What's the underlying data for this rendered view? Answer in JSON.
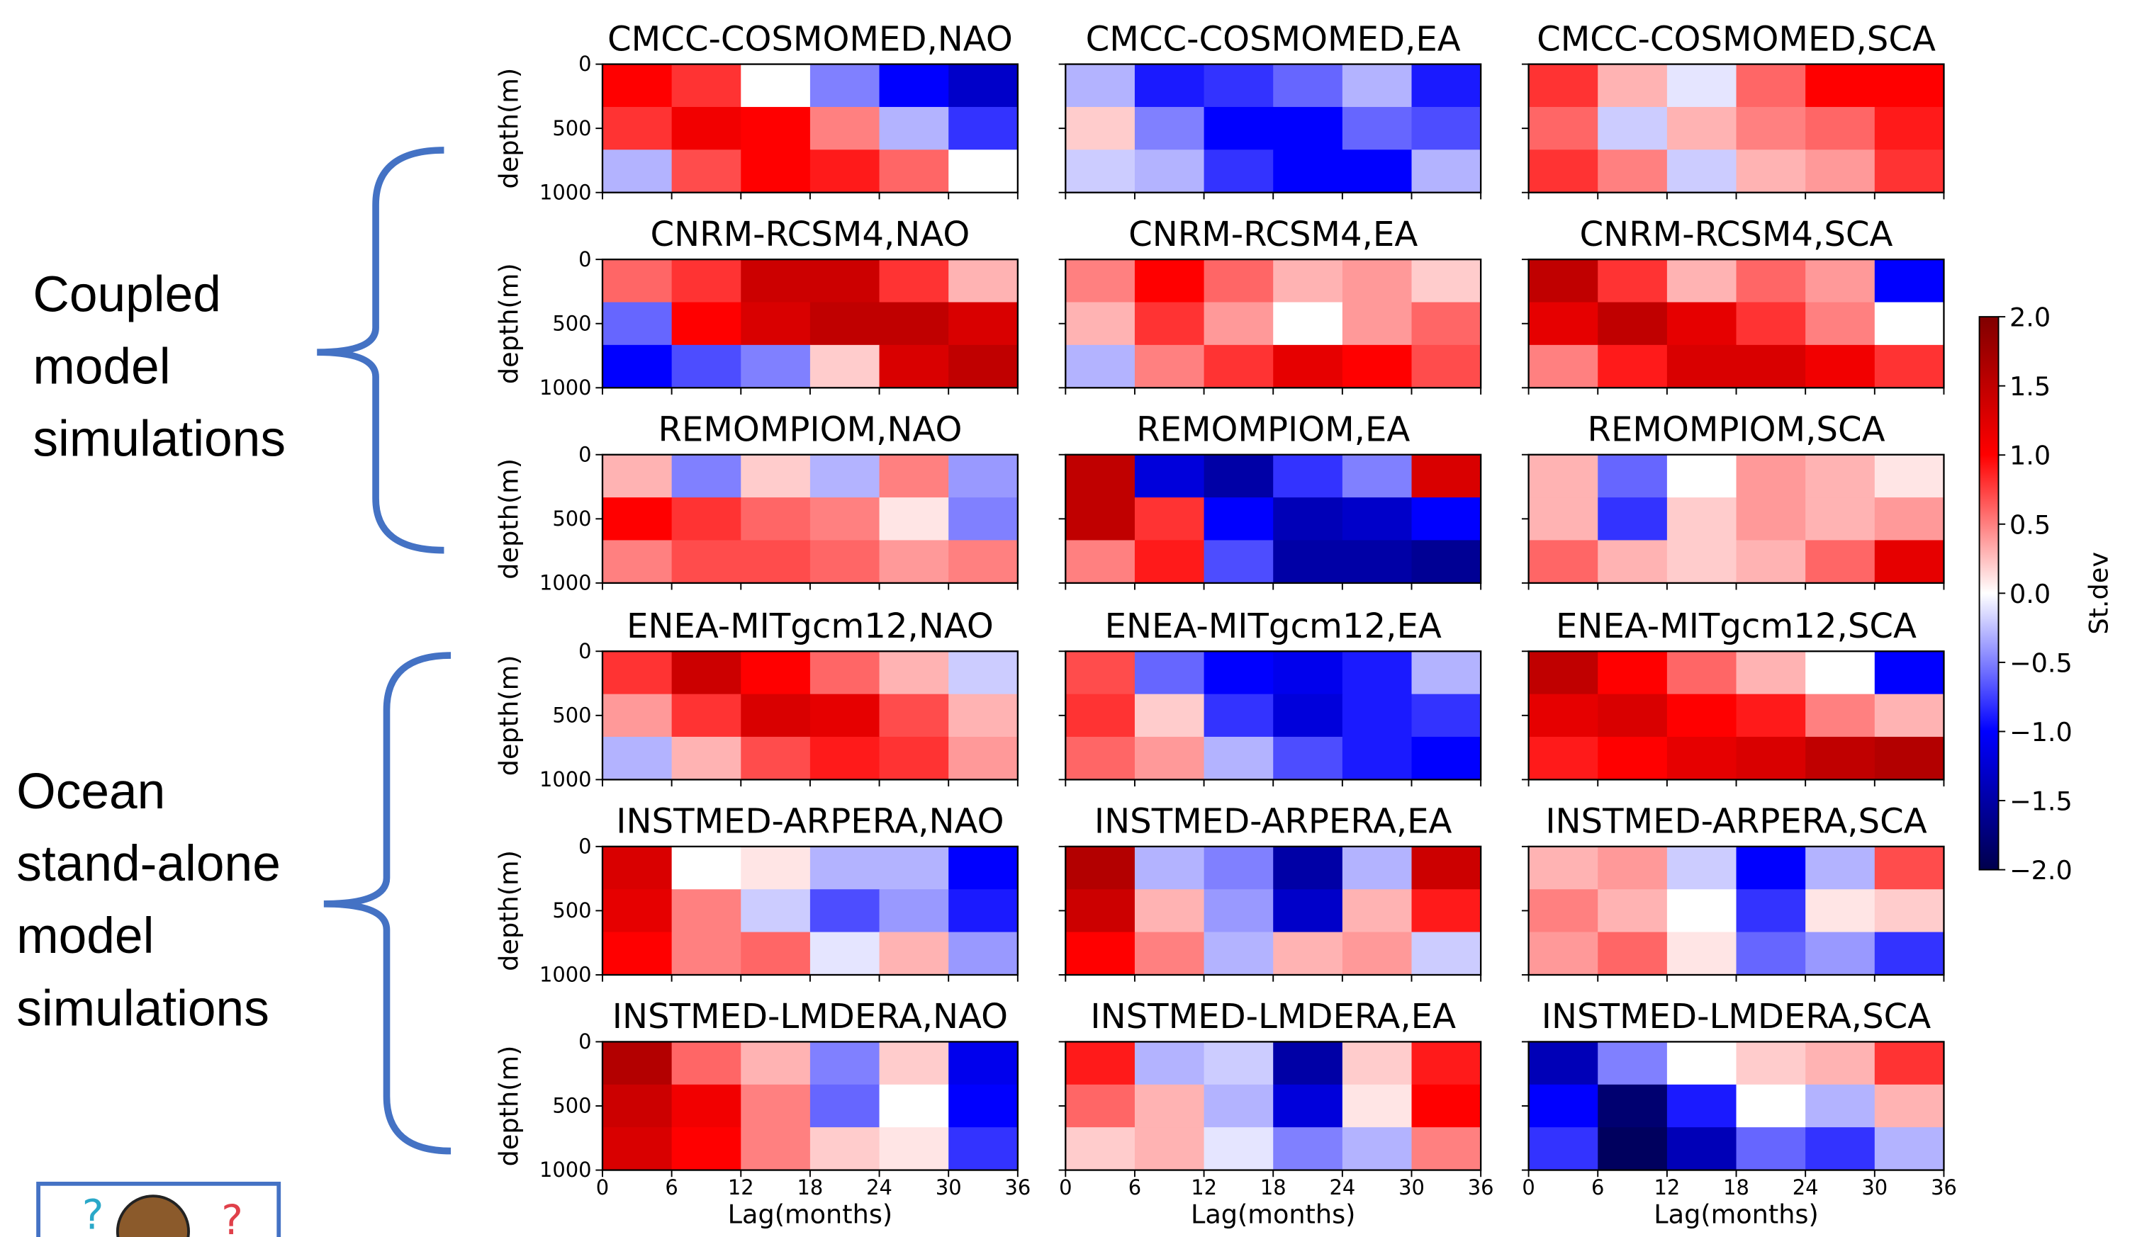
{
  "chart_data": [
    {
      "type": "heatmap",
      "title": "CMCC-COSMOMED,NAO",
      "x": [
        3,
        9,
        15,
        21,
        27,
        33
      ],
      "y": [
        167,
        500,
        833
      ],
      "values": [
        [
          1.0,
          0.8,
          0.0,
          -0.5,
          -1.0,
          -1.3
        ],
        [
          0.8,
          1.1,
          1.0,
          0.5,
          -0.3,
          -0.8
        ],
        [
          -0.3,
          0.7,
          1.0,
          0.9,
          0.6,
          0.0
        ]
      ],
      "xlim": [
        0,
        36
      ],
      "ylim": [
        1000,
        0
      ],
      "xticks": [
        0,
        6,
        12,
        18,
        24,
        30,
        36
      ],
      "yticks": [
        0,
        500,
        1000
      ],
      "ylabel": "depth(m)"
    },
    {
      "type": "heatmap",
      "title": "CMCC-COSMOMED,EA",
      "x": [
        3,
        9,
        15,
        21,
        27,
        33
      ],
      "y": [
        167,
        500,
        833
      ],
      "values": [
        [
          -0.3,
          -0.9,
          -0.8,
          -0.6,
          -0.3,
          -0.9
        ],
        [
          0.2,
          -0.5,
          -1.0,
          -1.0,
          -0.6,
          -0.7
        ],
        [
          -0.2,
          -0.3,
          -0.8,
          -1.0,
          -1.0,
          -0.3
        ]
      ],
      "xlim": [
        0,
        36
      ],
      "ylim": [
        1000,
        0
      ],
      "xticks": [
        0,
        6,
        12,
        18,
        24,
        30,
        36
      ],
      "yticks": [
        0,
        500,
        1000
      ]
    },
    {
      "type": "heatmap",
      "title": "CMCC-COSMOMED,SCA",
      "x": [
        3,
        9,
        15,
        21,
        27,
        33
      ],
      "y": [
        167,
        500,
        833
      ],
      "values": [
        [
          0.8,
          0.3,
          -0.1,
          0.6,
          1.0,
          1.0
        ],
        [
          0.6,
          -0.2,
          0.3,
          0.5,
          0.6,
          0.9
        ],
        [
          0.8,
          0.5,
          -0.2,
          0.3,
          0.4,
          0.8
        ]
      ],
      "xlim": [
        0,
        36
      ],
      "ylim": [
        1000,
        0
      ],
      "xticks": [
        0,
        6,
        12,
        18,
        24,
        30,
        36
      ],
      "yticks": [
        0,
        500,
        1000
      ]
    },
    {
      "type": "heatmap",
      "title": "CNRM-RCSM4,NAO",
      "x": [
        3,
        9,
        15,
        21,
        27,
        33
      ],
      "y": [
        167,
        500,
        833
      ],
      "values": [
        [
          0.6,
          0.8,
          1.4,
          1.4,
          0.8,
          0.3
        ],
        [
          -0.6,
          1.0,
          1.3,
          1.5,
          1.5,
          1.3
        ],
        [
          -1.0,
          -0.7,
          -0.5,
          0.2,
          1.3,
          1.5
        ]
      ],
      "xlim": [
        0,
        36
      ],
      "ylim": [
        1000,
        0
      ],
      "xticks": [
        0,
        6,
        12,
        18,
        24,
        30,
        36
      ],
      "yticks": [
        0,
        500,
        1000
      ],
      "ylabel": "depth(m)"
    },
    {
      "type": "heatmap",
      "title": "CNRM-RCSM4,EA",
      "x": [
        3,
        9,
        15,
        21,
        27,
        33
      ],
      "y": [
        167,
        500,
        833
      ],
      "values": [
        [
          0.5,
          1.0,
          0.6,
          0.3,
          0.4,
          0.2
        ],
        [
          0.3,
          0.8,
          0.4,
          0.0,
          0.4,
          0.6
        ],
        [
          -0.3,
          0.5,
          0.8,
          1.2,
          1.0,
          0.7
        ]
      ],
      "xlim": [
        0,
        36
      ],
      "ylim": [
        1000,
        0
      ],
      "xticks": [
        0,
        6,
        12,
        18,
        24,
        30,
        36
      ],
      "yticks": [
        0,
        500,
        1000
      ]
    },
    {
      "type": "heatmap",
      "title": "CNRM-RCSM4,SCA",
      "x": [
        3,
        9,
        15,
        21,
        27,
        33
      ],
      "y": [
        167,
        500,
        833
      ],
      "values": [
        [
          1.5,
          0.8,
          0.3,
          0.6,
          0.4,
          -1.0
        ],
        [
          1.2,
          1.5,
          1.2,
          0.8,
          0.5,
          0.0
        ],
        [
          0.5,
          0.9,
          1.3,
          1.3,
          1.1,
          0.8
        ]
      ],
      "xlim": [
        0,
        36
      ],
      "ylim": [
        1000,
        0
      ],
      "xticks": [
        0,
        6,
        12,
        18,
        24,
        30,
        36
      ],
      "yticks": [
        0,
        500,
        1000
      ]
    },
    {
      "type": "heatmap",
      "title": "REMOMPIOM,NAO",
      "x": [
        3,
        9,
        15,
        21,
        27,
        33
      ],
      "y": [
        167,
        500,
        833
      ],
      "values": [
        [
          0.3,
          -0.5,
          0.2,
          -0.3,
          0.5,
          -0.4
        ],
        [
          1.0,
          0.8,
          0.6,
          0.5,
          0.1,
          -0.5
        ],
        [
          0.5,
          0.7,
          0.7,
          0.6,
          0.4,
          0.5
        ]
      ],
      "xlim": [
        0,
        36
      ],
      "ylim": [
        1000,
        0
      ],
      "xticks": [
        0,
        6,
        12,
        18,
        24,
        30,
        36
      ],
      "yticks": [
        0,
        500,
        1000
      ],
      "ylabel": "depth(m)"
    },
    {
      "type": "heatmap",
      "title": "REMOMPIOM,EA",
      "x": [
        3,
        9,
        15,
        21,
        27,
        33
      ],
      "y": [
        167,
        500,
        833
      ],
      "values": [
        [
          1.5,
          -1.2,
          -1.5,
          -0.8,
          -0.5,
          1.3
        ],
        [
          1.5,
          0.8,
          -1.0,
          -1.4,
          -1.3,
          -1.0
        ],
        [
          0.5,
          0.9,
          -0.7,
          -1.5,
          -1.5,
          -1.6
        ]
      ],
      "xlim": [
        0,
        36
      ],
      "ylim": [
        1000,
        0
      ],
      "xticks": [
        0,
        6,
        12,
        18,
        24,
        30,
        36
      ],
      "yticks": [
        0,
        500,
        1000
      ]
    },
    {
      "type": "heatmap",
      "title": "REMOMPIOM,SCA",
      "x": [
        3,
        9,
        15,
        21,
        27,
        33
      ],
      "y": [
        167,
        500,
        833
      ],
      "values": [
        [
          0.3,
          -0.6,
          0.0,
          0.4,
          0.3,
          0.1
        ],
        [
          0.3,
          -0.8,
          0.2,
          0.4,
          0.3,
          0.4
        ],
        [
          0.6,
          0.3,
          0.2,
          0.3,
          0.6,
          1.2
        ]
      ],
      "xlim": [
        0,
        36
      ],
      "ylim": [
        1000,
        0
      ],
      "xticks": [
        0,
        6,
        12,
        18,
        24,
        30,
        36
      ],
      "yticks": [
        0,
        500,
        1000
      ]
    },
    {
      "type": "heatmap",
      "title": "ENEA-MITgcm12,NAO",
      "x": [
        3,
        9,
        15,
        21,
        27,
        33
      ],
      "y": [
        167,
        500,
        833
      ],
      "values": [
        [
          0.8,
          1.4,
          1.0,
          0.6,
          0.3,
          -0.2
        ],
        [
          0.4,
          0.8,
          1.3,
          1.2,
          0.7,
          0.3
        ],
        [
          -0.3,
          0.3,
          0.7,
          0.9,
          0.8,
          0.4
        ]
      ],
      "xlim": [
        0,
        36
      ],
      "ylim": [
        1000,
        0
      ],
      "xticks": [
        0,
        6,
        12,
        18,
        24,
        30,
        36
      ],
      "yticks": [
        0,
        500,
        1000
      ],
      "ylabel": "depth(m)"
    },
    {
      "type": "heatmap",
      "title": "ENEA-MITgcm12,EA",
      "x": [
        3,
        9,
        15,
        21,
        27,
        33
      ],
      "y": [
        167,
        500,
        833
      ],
      "values": [
        [
          0.7,
          -0.6,
          -1.0,
          -1.1,
          -0.9,
          -0.3
        ],
        [
          0.8,
          0.2,
          -0.8,
          -1.2,
          -0.9,
          -0.8
        ],
        [
          0.6,
          0.4,
          -0.3,
          -0.7,
          -0.9,
          -1.0
        ]
      ],
      "xlim": [
        0,
        36
      ],
      "ylim": [
        1000,
        0
      ],
      "xticks": [
        0,
        6,
        12,
        18,
        24,
        30,
        36
      ],
      "yticks": [
        0,
        500,
        1000
      ]
    },
    {
      "type": "heatmap",
      "title": "ENEA-MITgcm12,SCA",
      "x": [
        3,
        9,
        15,
        21,
        27,
        33
      ],
      "y": [
        167,
        500,
        833
      ],
      "values": [
        [
          1.5,
          1.0,
          0.6,
          0.3,
          0.0,
          -1.0
        ],
        [
          1.2,
          1.3,
          1.0,
          0.9,
          0.5,
          0.3
        ],
        [
          0.9,
          1.0,
          1.2,
          1.3,
          1.5,
          1.6
        ]
      ],
      "xlim": [
        0,
        36
      ],
      "ylim": [
        1000,
        0
      ],
      "xticks": [
        0,
        6,
        12,
        18,
        24,
        30,
        36
      ],
      "yticks": [
        0,
        500,
        1000
      ]
    },
    {
      "type": "heatmap",
      "title": "INSTMED-ARPERA,NAO",
      "x": [
        3,
        9,
        15,
        21,
        27,
        33
      ],
      "y": [
        167,
        500,
        833
      ],
      "values": [
        [
          1.3,
          0.0,
          0.1,
          -0.3,
          -0.3,
          -1.0
        ],
        [
          1.2,
          0.5,
          -0.2,
          -0.7,
          -0.4,
          -0.9
        ],
        [
          1.0,
          0.5,
          0.6,
          -0.1,
          0.3,
          -0.4
        ]
      ],
      "xlim": [
        0,
        36
      ],
      "ylim": [
        1000,
        0
      ],
      "xticks": [
        0,
        6,
        12,
        18,
        24,
        30,
        36
      ],
      "yticks": [
        0,
        500,
        1000
      ],
      "ylabel": "depth(m)"
    },
    {
      "type": "heatmap",
      "title": "INSTMED-ARPERA,EA",
      "x": [
        3,
        9,
        15,
        21,
        27,
        33
      ],
      "y": [
        167,
        500,
        833
      ],
      "values": [
        [
          1.6,
          -0.3,
          -0.5,
          -1.5,
          -0.3,
          1.4
        ],
        [
          1.4,
          0.3,
          -0.4,
          -1.3,
          0.3,
          0.9
        ],
        [
          1.0,
          0.5,
          -0.3,
          0.3,
          0.4,
          -0.2
        ]
      ],
      "xlim": [
        0,
        36
      ],
      "ylim": [
        1000,
        0
      ],
      "xticks": [
        0,
        6,
        12,
        18,
        24,
        30,
        36
      ],
      "yticks": [
        0,
        500,
        1000
      ]
    },
    {
      "type": "heatmap",
      "title": "INSTMED-ARPERA,SCA",
      "x": [
        3,
        9,
        15,
        21,
        27,
        33
      ],
      "y": [
        167,
        500,
        833
      ],
      "values": [
        [
          0.3,
          0.4,
          -0.2,
          -1.0,
          -0.3,
          0.7
        ],
        [
          0.5,
          0.3,
          0.0,
          -0.8,
          0.1,
          0.2
        ],
        [
          0.4,
          0.6,
          0.1,
          -0.6,
          -0.4,
          -0.8
        ]
      ],
      "xlim": [
        0,
        36
      ],
      "ylim": [
        1000,
        0
      ],
      "xticks": [
        0,
        6,
        12,
        18,
        24,
        30,
        36
      ],
      "yticks": [
        0,
        500,
        1000
      ]
    },
    {
      "type": "heatmap",
      "title": "INSTMED-LMDERA,NAO",
      "x": [
        3,
        9,
        15,
        21,
        27,
        33
      ],
      "y": [
        167,
        500,
        833
      ],
      "values": [
        [
          1.6,
          0.6,
          0.3,
          -0.5,
          0.2,
          -1.1
        ],
        [
          1.4,
          1.1,
          0.5,
          -0.6,
          0.0,
          -1.0
        ],
        [
          1.3,
          1.0,
          0.5,
          0.2,
          0.1,
          -0.8
        ]
      ],
      "xlim": [
        0,
        36
      ],
      "ylim": [
        1000,
        0
      ],
      "xticks": [
        0,
        6,
        12,
        18,
        24,
        30,
        36
      ],
      "yticks": [
        0,
        500,
        1000
      ],
      "ylabel": "depth(m)",
      "xlabel": "Lag(months)"
    },
    {
      "type": "heatmap",
      "title": "INSTMED-LMDERA,EA",
      "x": [
        3,
        9,
        15,
        21,
        27,
        33
      ],
      "y": [
        167,
        500,
        833
      ],
      "values": [
        [
          0.9,
          -0.3,
          -0.2,
          -1.5,
          0.2,
          0.9
        ],
        [
          0.6,
          0.3,
          -0.3,
          -1.2,
          0.1,
          1.0
        ],
        [
          0.2,
          0.3,
          -0.1,
          -0.5,
          -0.3,
          0.5
        ]
      ],
      "xlim": [
        0,
        36
      ],
      "ylim": [
        1000,
        0
      ],
      "xticks": [
        0,
        6,
        12,
        18,
        24,
        30,
        36
      ],
      "yticks": [
        0,
        500,
        1000
      ],
      "xlabel": "Lag(months)"
    },
    {
      "type": "heatmap",
      "title": "INSTMED-LMDERA,SCA",
      "x": [
        3,
        9,
        15,
        21,
        27,
        33
      ],
      "y": [
        167,
        500,
        833
      ],
      "values": [
        [
          -1.4,
          -0.5,
          0.0,
          0.2,
          0.3,
          0.8
        ],
        [
          -1.0,
          -1.8,
          -0.9,
          0.0,
          -0.3,
          0.3
        ],
        [
          -0.8,
          -1.9,
          -1.4,
          -0.6,
          -0.8,
          -0.3
        ]
      ],
      "xlim": [
        0,
        36
      ],
      "ylim": [
        1000,
        0
      ],
      "xticks": [
        0,
        6,
        12,
        18,
        24,
        30,
        36
      ],
      "yticks": [
        0,
        500,
        1000
      ],
      "xlabel": "Lag(months)"
    }
  ],
  "colorbar": {
    "label": "St.dev",
    "lim": [
      -2,
      2
    ],
    "colors": [
      "#00004c",
      "#0000ff",
      "#ffffff",
      "#ff0000",
      "#800000"
    ],
    "ticks": [
      {
        "value": 2,
        "label": "2.0"
      },
      {
        "value": 1.5,
        "label": "1.5"
      },
      {
        "value": 1,
        "label": "1.0"
      },
      {
        "value": 0.5,
        "label": "0.5"
      },
      {
        "value": 0,
        "label": "0.0"
      },
      {
        "value": -0.5,
        "label": "−0.5"
      },
      {
        "value": -1,
        "label": "−1.0"
      },
      {
        "value": -1.5,
        "label": "−1.5"
      },
      {
        "value": -2,
        "label": "−2.0"
      }
    ]
  },
  "annotations": [
    {
      "lines": [
        "Coupled",
        "model",
        "simulations"
      ]
    },
    {
      "lines": [
        "Ocean",
        "stand-alone",
        "model",
        "simulations"
      ]
    }
  ]
}
